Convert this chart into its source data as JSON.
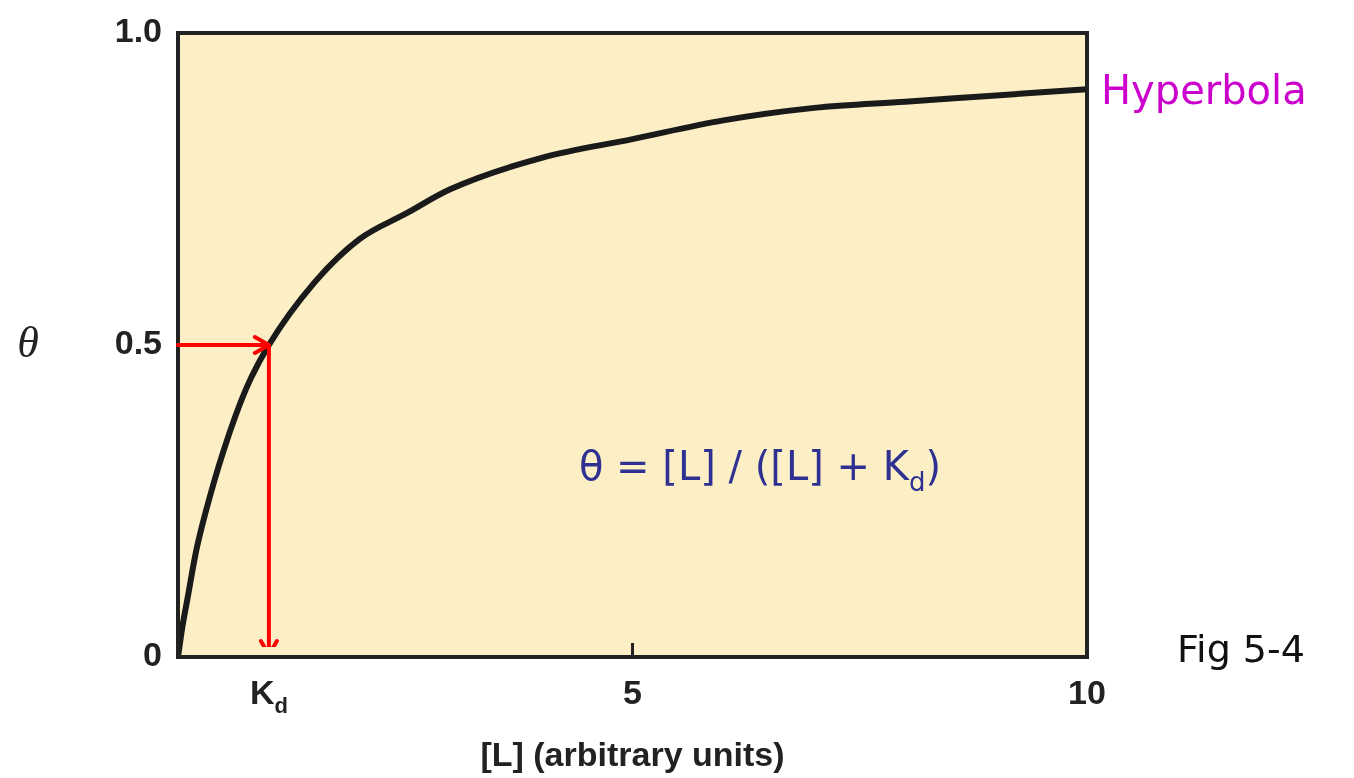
{
  "chart_data": {
    "type": "line",
    "xlabel": "[L] (arbitrary units)",
    "ylabel": "θ",
    "xlim": [
      0,
      10
    ],
    "xticks": [
      {
        "value": 1,
        "label": "K$_{d}$"
      },
      5,
      10
    ],
    "ylim": [
      0,
      1
    ],
    "yticks": [
      0,
      0.5,
      {
        "value": 1,
        "label": "1.0"
      }
    ],
    "grid": false,
    "legend": false,
    "marker": "none",
    "line_style": "solid",
    "series": [
      {
        "color": "#1a1a1a",
        "x": [
          0,
          0.05,
          0.1,
          0.2,
          0.3,
          0.5,
          0.75,
          1,
          1.5,
          2,
          2.5,
          3,
          4,
          5,
          6,
          7,
          8,
          9,
          10
        ],
        "values": [
          0,
          0.05,
          0.09,
          0.17,
          0.23,
          0.33,
          0.43,
          0.5,
          0.6,
          0.67,
          0.71,
          0.75,
          0.8,
          0.83,
          0.86,
          0.88,
          0.89,
          0.9,
          0.91
        ]
      }
    ],
    "annotations": [
      {
        "text": "Hyperbola",
        "x": 10,
        "y": 0.91
      },
      "θ = [L] / ([L] + K$_{d}$)",
      "Fig 5-4"
    ]
  }
}
